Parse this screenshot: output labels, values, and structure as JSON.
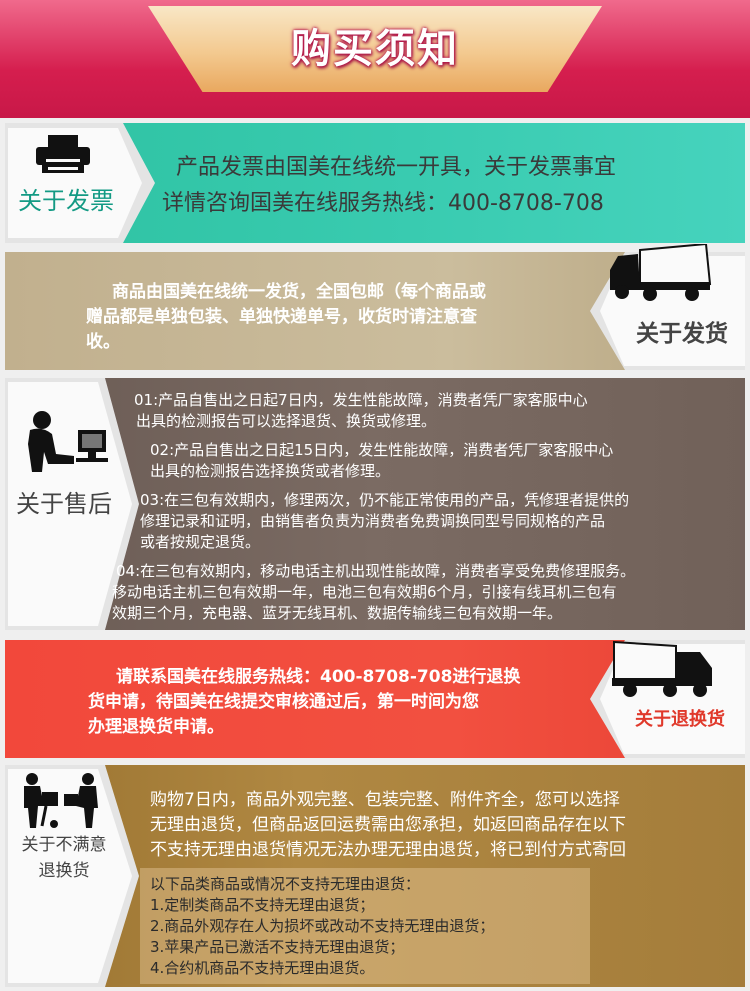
{
  "header": {
    "title": "购买须知"
  },
  "invoice": {
    "label": "关于发票",
    "lines": [
      "产品发票由国美在线统一开具，关于发票事宜",
      "详情咨询国美在线服务热线：400-8708-708"
    ]
  },
  "shipping": {
    "label": "关于发货",
    "lines": [
      "商品由国美在线统一发货，全国包邮（每个商品或",
      "赠品都是单独包装、单独快递单号，收货时请注意查",
      "收。"
    ]
  },
  "aftersales": {
    "label": "关于售后",
    "items": [
      {
        "lines": [
          "01:产品自售出之日起7日内，发生性能故障，消费者凭厂家客服中心",
          "出具的检测报告可以选择退货、换货或修理。"
        ]
      },
      {
        "lines": [
          "02:产品自售出之日起15日内，发生性能故障，消费者凭厂家客服中心",
          "出具的检测报告选择换货或者修理。"
        ]
      },
      {
        "lines": [
          "03:在三包有效期内，修理两次，仍不能正常使用的产品，凭修理者提供的",
          "修理记录和证明，由销售者负责为消费者免费调换同型号同规格的产品",
          "或者按规定退货。"
        ]
      },
      {
        "lines": [
          "04:在三包有效期内，移动电话主机出现性能故障，消费者享受免费修理服务。",
          "移动电话主机三包有效期一年，电池三包有效期6个月，引接有线耳机三包有",
          "效期三个月，充电器、蓝牙无线耳机、数据传输线三包有效期一年。"
        ]
      }
    ]
  },
  "returns": {
    "label": "关于退换货",
    "lines": [
      "请联系国美在线服务热线：400-8708-708进行退换",
      "货申请，待国美在线提交审核通过后，第一时间为您",
      "办理退换货申请。"
    ]
  },
  "no_reason": {
    "label_lines": [
      "关于不满意",
      "退换货"
    ],
    "lines": [
      "购物7日内，商品外观完整、包装完整、附件齐全，您可以选择",
      "无理由退货，但商品返回运费需由您承担，如返回商品存在以下",
      "不支持无理由退货情况无法办理无理由退货，将已到付方式寄回"
    ],
    "list_title": "以下品类商品或情况不支持无理由退货：",
    "list": [
      "1.定制类商品不支持无理由退货；",
      "2.商品外观存在人为损坏或改动不支持无理由退货；",
      "3.苹果产品已激活不支持无理由退货；",
      "4.合约机商品不支持无理由退货。"
    ]
  },
  "colors": {
    "header": "#d51e4e",
    "invoice": "#39cbb0",
    "shipping": "#c1b08e",
    "aftersales": "#6a5b54",
    "returns": "#f2483b",
    "no_reason": "#a47d3b"
  }
}
